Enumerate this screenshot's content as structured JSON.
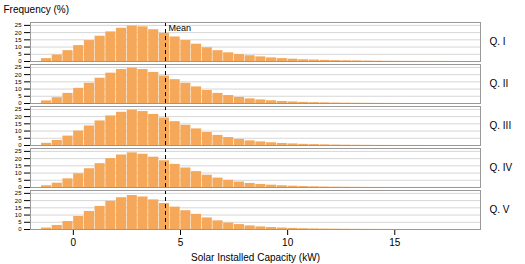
{
  "chart_data": {
    "type": "histogram",
    "xlabel": "Solar Installed Capacity (kW)",
    "ylabel": "Frequency (%)",
    "bins": [
      -1.5,
      -1.0,
      -0.5,
      0,
      0.5,
      1.0,
      1.5,
      2.0,
      2.5,
      3.0,
      3.5,
      4.0,
      4.5,
      5.0,
      5.5,
      6.0,
      6.5,
      7.0,
      7.5,
      8.0,
      8.5,
      9.0,
      9.5,
      10.0,
      10.5,
      11.0,
      11.5,
      12.0,
      12.5,
      13.0,
      13.5,
      14.0,
      14.5,
      15.0,
      15.5,
      16.0,
      16.5,
      17.0,
      17.5,
      18.0,
      18.5
    ],
    "series": [
      {
        "name": "Q. I",
        "values": [
          2.0,
          4.5,
          7.5,
          11.0,
          14.5,
          17.5,
          20.5,
          23.0,
          24.5,
          24.0,
          22.0,
          19.5,
          17.0,
          14.5,
          12.0,
          9.5,
          7.5,
          6.0,
          4.8,
          4.0,
          3.2,
          2.5,
          2.0,
          1.6,
          1.2,
          1.0,
          0.8,
          0.6,
          0.5,
          0.4,
          0.3,
          0.22,
          0.16,
          0.12,
          0.09,
          0.06,
          0.05,
          0.03,
          0.02,
          0.02
        ]
      },
      {
        "name": "Q. II",
        "values": [
          1.8,
          4.0,
          7.0,
          10.5,
          14.0,
          17.5,
          21.0,
          23.5,
          24.5,
          23.5,
          21.5,
          19.0,
          16.5,
          14.0,
          11.5,
          9.0,
          7.0,
          5.5,
          4.2,
          3.2,
          2.5,
          1.9,
          1.4,
          1.1,
          0.8,
          0.6,
          0.45,
          0.32,
          0.23,
          0.17,
          0.12,
          0.08,
          0.06,
          0.04,
          0.03,
          0.02,
          0.01,
          0.01,
          0.01,
          0.01
        ]
      },
      {
        "name": "Q. III",
        "values": [
          1.5,
          3.5,
          6.5,
          10.0,
          13.5,
          17.0,
          20.5,
          23.0,
          24.5,
          23.5,
          21.5,
          19.0,
          16.5,
          14.0,
          11.5,
          9.0,
          7.0,
          5.5,
          4.2,
          3.2,
          2.5,
          1.9,
          1.4,
          1.1,
          0.8,
          0.6,
          0.45,
          0.32,
          0.23,
          0.17,
          0.12,
          0.08,
          0.06,
          0.04,
          0.03,
          0.02,
          0.01,
          0.01,
          0.01,
          0.01
        ]
      },
      {
        "name": "Q. IV",
        "values": [
          1.2,
          3.0,
          6.0,
          9.5,
          13.0,
          16.5,
          20.0,
          22.5,
          24.0,
          23.0,
          21.0,
          18.5,
          16.0,
          13.5,
          11.0,
          8.5,
          6.5,
          5.0,
          3.8,
          2.8,
          2.1,
          1.6,
          1.2,
          0.9,
          0.65,
          0.48,
          0.35,
          0.25,
          0.18,
          0.13,
          0.09,
          0.06,
          0.04,
          0.03,
          0.02,
          0.01,
          0.01,
          0.01,
          0.01,
          0.01
        ]
      },
      {
        "name": "Q. V",
        "values": [
          1.0,
          2.8,
          5.5,
          9.0,
          12.5,
          16.0,
          19.5,
          22.0,
          23.5,
          22.5,
          20.5,
          18.0,
          15.5,
          13.0,
          10.5,
          8.0,
          6.0,
          4.5,
          3.4,
          2.5,
          1.8,
          1.35,
          1.0,
          0.75,
          0.55,
          0.4,
          0.3,
          0.22,
          0.16,
          0.11,
          0.08,
          0.05,
          0.04,
          0.02,
          0.02,
          0.01,
          0.01,
          0.01,
          0.01,
          0.01
        ]
      }
    ],
    "color": "#F5A85A",
    "xlim": [
      -2,
      19
    ],
    "xticks": [
      0,
      5,
      10,
      15
    ],
    "ylim": [
      0,
      27
    ],
    "yticks": [
      0,
      5,
      10,
      15,
      20,
      25
    ],
    "grid": true,
    "annotations": [
      {
        "x": 4.3,
        "text": "Mean",
        "line_style": "dashed"
      }
    ]
  }
}
